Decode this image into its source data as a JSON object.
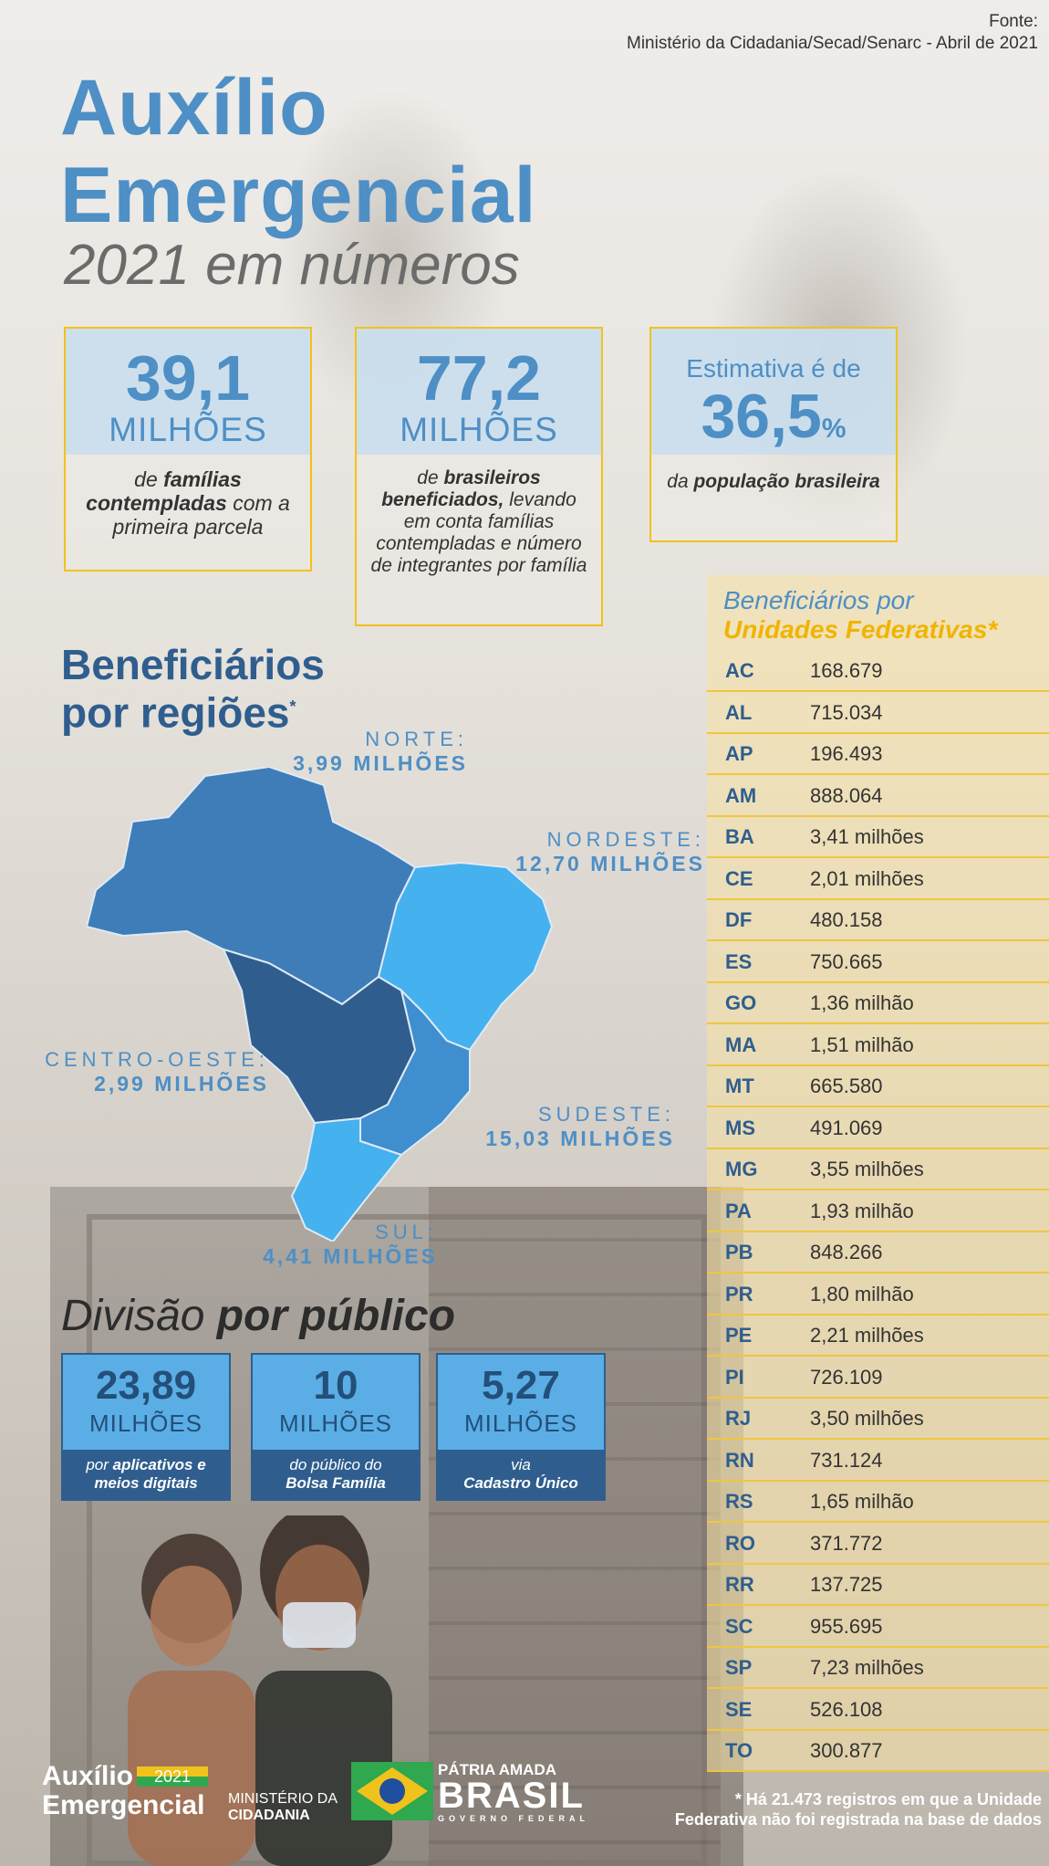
{
  "source": {
    "label": "Fonte:",
    "text": "Ministério da Cidadania/Secad/Senarc - Abril de 2021"
  },
  "title": {
    "line1": "Auxílio",
    "line2": "Emergencial",
    "subtitle": "2021 em números"
  },
  "stats": [
    {
      "num": "39,1",
      "unit": "MILHÕES",
      "desc_pre": "de ",
      "desc_bold": "famílias contempladas",
      "desc_post": " com a primeira parcela"
    },
    {
      "num": "77,2",
      "unit": "MILHÕES",
      "desc_pre": "de ",
      "desc_bold": "brasileiros beneficiados,",
      "desc_post": " levando em conta famílias contempladas e número de integrantes por família"
    },
    {
      "pre": "Estimativa é de",
      "num": "36,5",
      "pct": "%",
      "desc_pre": "da ",
      "desc_bold": "população brasileira",
      "desc_post": ""
    }
  ],
  "regions": {
    "title_line1": "Beneficiários",
    "title_line2": "por regiões",
    "title_mark": "*",
    "norte": {
      "name": "NORTE:",
      "value": "3,99 MILHÕES"
    },
    "nordeste": {
      "name": "NORDESTE:",
      "value": "12,70 MILHÕES"
    },
    "centro": {
      "name": "CENTRO-OESTE:",
      "value": "2,99 MILHÕES"
    },
    "sudeste": {
      "name": "SUDESTE:",
      "value": "15,03 MILHÕES"
    },
    "sul": {
      "name": "SUL:",
      "value": "4,41 MILHÕES"
    }
  },
  "division": {
    "title_pre": "Divisão ",
    "title_bold": "por público",
    "items": [
      {
        "num": "23,89",
        "unit": "MILHÕES",
        "d_pre": "por ",
        "d_bold": "aplicativos e meios digitais"
      },
      {
        "num": "10",
        "unit": "MILHÕES",
        "d_pre": "do público do ",
        "d_bold": "Bolsa Família"
      },
      {
        "num": "5,27",
        "unit": "MILHÕES",
        "d_pre": "via ",
        "d_bold": "Cadastro Único"
      }
    ]
  },
  "uf": {
    "title1": "Beneficiários por",
    "title2": "Unidades Federativas*",
    "rows": [
      {
        "s": "AC",
        "v": "168.679"
      },
      {
        "s": "AL",
        "v": "715.034"
      },
      {
        "s": "AP",
        "v": "196.493"
      },
      {
        "s": "AM",
        "v": "888.064"
      },
      {
        "s": "BA",
        "v": "3,41 milhões"
      },
      {
        "s": "CE",
        "v": "2,01 milhões"
      },
      {
        "s": "DF",
        "v": "480.158"
      },
      {
        "s": "ES",
        "v": "750.665"
      },
      {
        "s": "GO",
        "v": "1,36 milhão"
      },
      {
        "s": "MA",
        "v": " 1,51 milhão"
      },
      {
        "s": "MT",
        "v": "665.580"
      },
      {
        "s": "MS",
        "v": "491.069"
      },
      {
        "s": "MG",
        "v": "3,55 milhões"
      },
      {
        "s": "PA",
        "v": "1,93 milhão"
      },
      {
        "s": "PB",
        "v": "848.266"
      },
      {
        "s": "PR",
        "v": "1,80 milhão"
      },
      {
        "s": "PE",
        "v": "2,21 milhões"
      },
      {
        "s": "PI",
        "v": "726.109"
      },
      {
        "s": "RJ",
        "v": "3,50 milhões"
      },
      {
        "s": "RN",
        "v": "731.124"
      },
      {
        "s": "RS",
        "v": "1,65 milhão"
      },
      {
        "s": "RO",
        "v": "371.772"
      },
      {
        "s": "RR",
        "v": "137.725"
      },
      {
        "s": "SC",
        "v": "955.695"
      },
      {
        "s": "SP",
        "v": "7,23 milhões"
      },
      {
        "s": "SE",
        "v": "526.108"
      },
      {
        "s": "TO",
        "v": "300.877"
      }
    ]
  },
  "footer": {
    "logo1": "Auxílio",
    "logo2": "Emergencial",
    "logo_year": "2021",
    "ministry1": "MINISTÉRIO DA",
    "ministry2": "CIDADANIA",
    "patria": "PÁTRIA AMADA",
    "brasil": "BRASIL",
    "gov": "GOVERNO FEDERAL",
    "note1": "* Há 21.473 registros em que a Unidade",
    "note2": "Federativa não foi registrada na base de dados"
  },
  "colors": {
    "primary": "#4e8fc5",
    "dark": "#2f5e8e",
    "accent": "#f1c21b",
    "light": "#5aaee5"
  }
}
